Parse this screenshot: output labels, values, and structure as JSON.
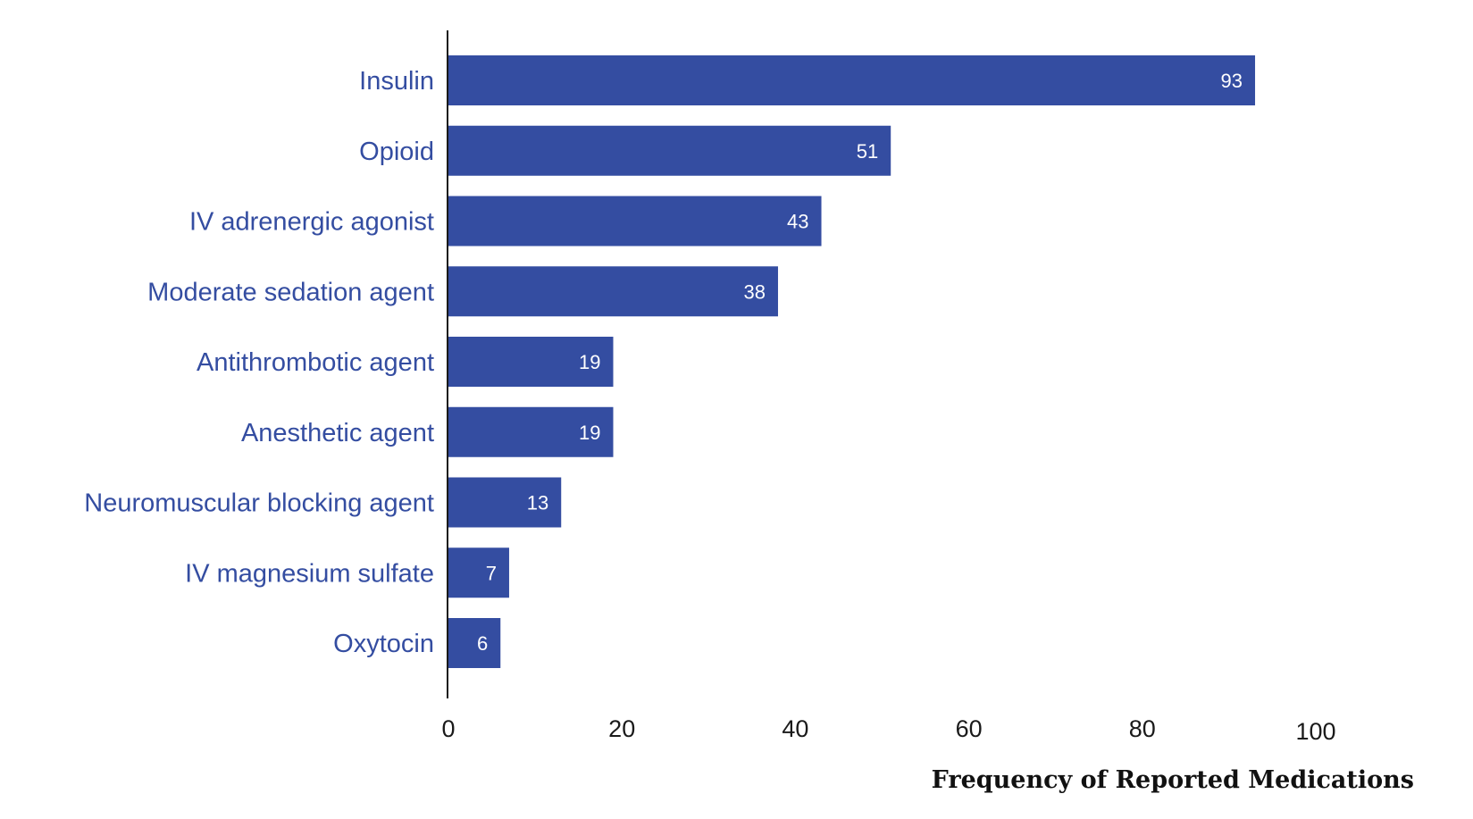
{
  "chart_data": {
    "type": "bar",
    "orientation": "horizontal",
    "categories": [
      "Insulin",
      "Opioid",
      "IV adrenergic agonist",
      "Moderate sedation agent",
      "Antithrombotic agent",
      "Anesthetic agent",
      "Neuromuscular blocking agent",
      "IV magnesium sulfate",
      "Oxytocin"
    ],
    "values": [
      93,
      51,
      43,
      38,
      19,
      19,
      13,
      7,
      6
    ],
    "data_labels": [
      "93",
      "51",
      "43",
      "38",
      "19",
      "19",
      "13",
      "7",
      "6"
    ],
    "xlabel": "Frequency of Reported Medications",
    "ylabel": "",
    "xlim": [
      0,
      100
    ],
    "xticks": [
      0,
      20,
      40,
      60,
      80,
      100
    ],
    "xtick_labels": [
      "0",
      "20",
      "40",
      "60",
      "80",
      "100"
    ],
    "grid": false,
    "legend": "none",
    "colors": {
      "bar": "#344da1",
      "category_text": "#344da1",
      "value_text": "#ffffff",
      "axis": "#1a1a1a"
    }
  }
}
